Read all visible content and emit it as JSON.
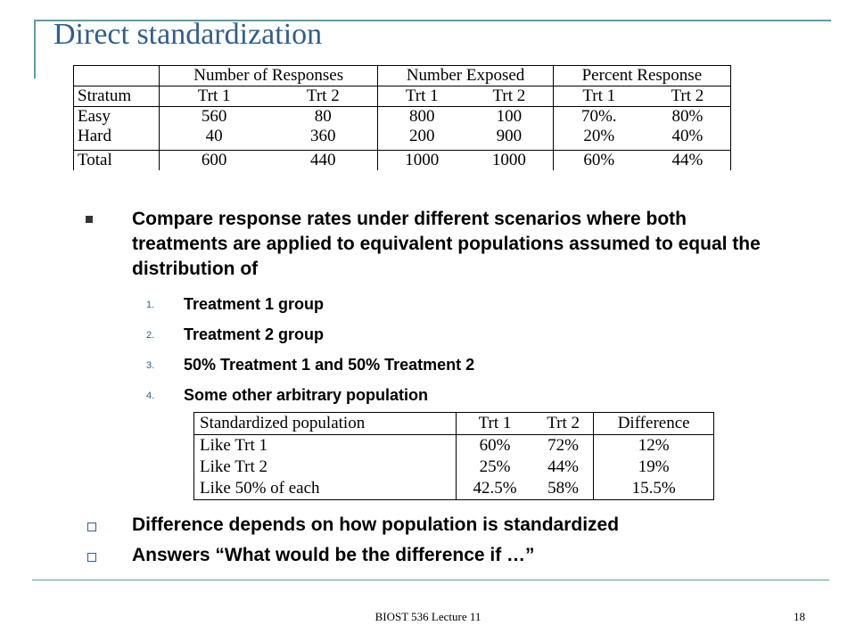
{
  "title": "Direct standardization",
  "table1": {
    "group_headers": [
      "Number of Responses",
      "Number Exposed",
      "Percent Response"
    ],
    "subheaders": [
      "Stratum",
      "Trt 1",
      "Trt 2",
      "Trt 1",
      "Trt 2",
      "Trt 1",
      "Trt 2"
    ],
    "rows": [
      [
        "Easy",
        "560",
        "80",
        "800",
        "100",
        "70%.",
        "80%"
      ],
      [
        "Hard",
        "40",
        "360",
        "200",
        "900",
        "20%",
        "40%"
      ]
    ],
    "total": [
      "Total",
      "600",
      "440",
      "1000",
      "1000",
      "60%",
      "44%"
    ]
  },
  "bullet_main": "Compare response rates under different scenarios where both treatments are applied to equivalent populations assumed to equal the distribution of",
  "sub_items": [
    {
      "num": "1.",
      "text": "Treatment 1 group"
    },
    {
      "num": "2.",
      "text": "Treatment 2 group"
    },
    {
      "num": "3.",
      "text": "50% Treatment 1 and 50% Treatment 2"
    },
    {
      "num": "4.",
      "text": "Some other arbitrary population"
    }
  ],
  "table2": {
    "headers": [
      "Standardized population",
      "Trt 1",
      "Trt 2",
      "Difference"
    ],
    "rows": [
      [
        "Like Trt 1",
        "60%",
        "72%",
        "12%"
      ],
      [
        "Like Trt 2",
        "25%",
        "44%",
        "19%"
      ],
      [
        "Like 50% of each",
        "42.5%",
        "58%",
        "15.5%"
      ]
    ]
  },
  "check_items": [
    "Difference depends on how population is standardized",
    "Answers “What would be the difference if …”"
  ],
  "footer": "BIOST 536 Lecture 11",
  "page_number": "18"
}
